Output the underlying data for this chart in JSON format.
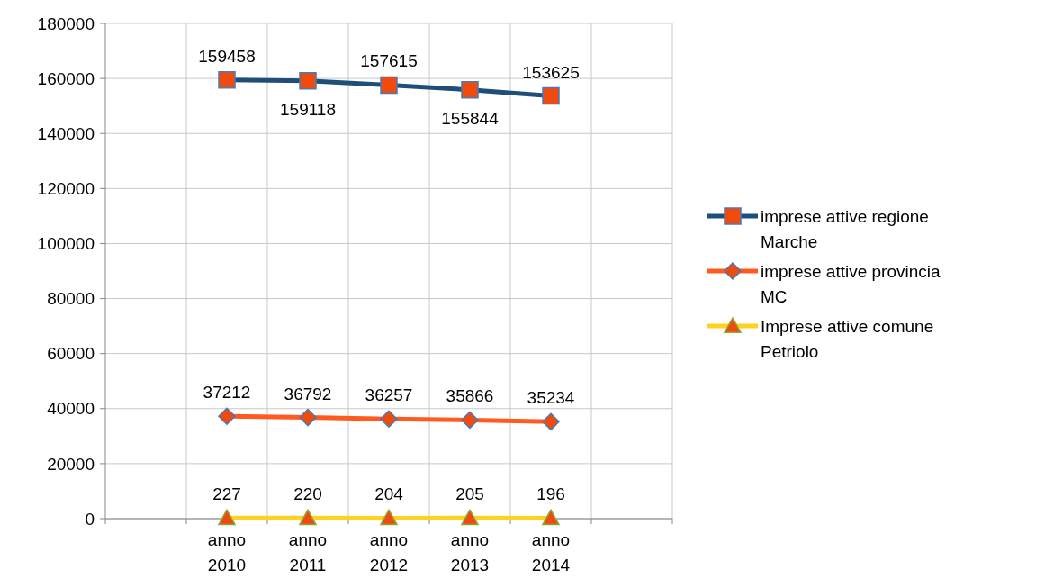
{
  "chart_data": {
    "type": "line",
    "categories": [
      null,
      "anno 2010",
      "anno 2011",
      "anno 2012",
      "anno 2013",
      "anno 2014",
      null
    ],
    "series": [
      {
        "name": "imprese attive regione Marche",
        "color": "#1f4e79",
        "marker": "square",
        "values": [
          null,
          159458,
          159118,
          157615,
          155844,
          153625,
          null
        ]
      },
      {
        "name": "imprese attive provincia MC",
        "color": "#ff5a1f",
        "marker": "diamond",
        "values": [
          null,
          37212,
          36792,
          36257,
          35866,
          35234,
          null
        ]
      },
      {
        "name": "Imprese attive comune Petriolo",
        "color": "#ffd21f",
        "marker": "triangle",
        "values": [
          null,
          227,
          220,
          204,
          205,
          196,
          null
        ]
      }
    ],
    "ylim": [
      0,
      180000
    ],
    "yticks": [
      0,
      20000,
      40000,
      60000,
      80000,
      100000,
      120000,
      140000,
      160000,
      180000
    ],
    "grid": true,
    "legend": "right",
    "data_labels": true,
    "line_style": "solid"
  }
}
